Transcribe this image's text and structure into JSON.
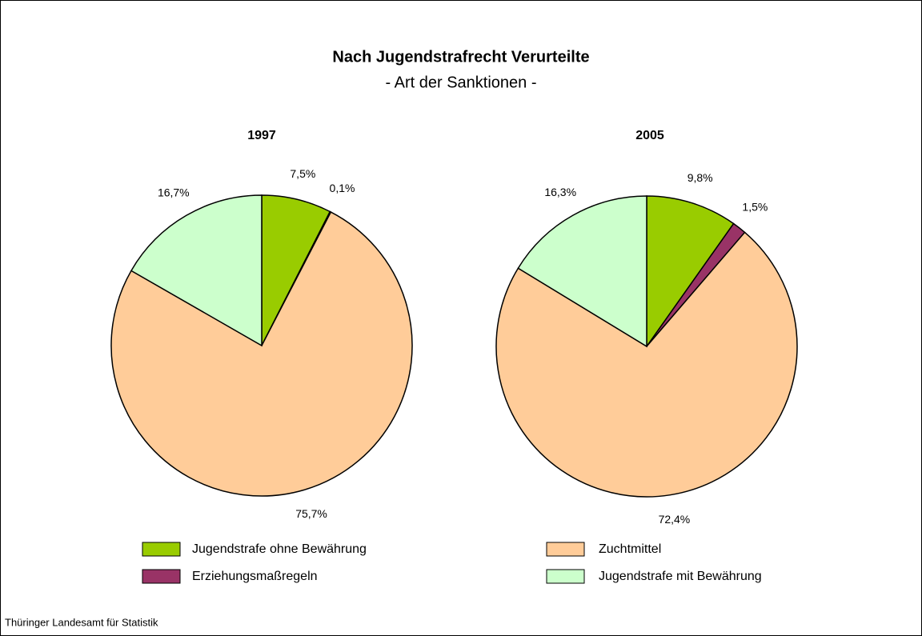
{
  "title": "Nach Jugendstrafrecht Verurteilte",
  "subtitle": "- Art der Sanktionen -",
  "source": "Thüringer Landesamt für Statistik",
  "legend": {
    "categories": [
      "Jugendstrafe ohne Bewährung",
      "Erziehungsmaßregeln",
      "Zuchtmittel",
      "Jugendstrafe mit Bewährung"
    ],
    "colors": [
      "#99cc00",
      "#993366",
      "#ffcc99",
      "#ccffcc"
    ]
  },
  "chart_data": [
    {
      "type": "pie",
      "title": "1997",
      "values": [
        7.5,
        0.1,
        75.7,
        16.7
      ],
      "value_labels": [
        "7,5%",
        "0,1%",
        "75,7%",
        "16,7%"
      ]
    },
    {
      "type": "pie",
      "title": "2005",
      "values": [
        9.8,
        1.5,
        72.4,
        16.3
      ],
      "value_labels": [
        "9,8%",
        "1,5%",
        "72,4%",
        "16,3%"
      ]
    }
  ]
}
